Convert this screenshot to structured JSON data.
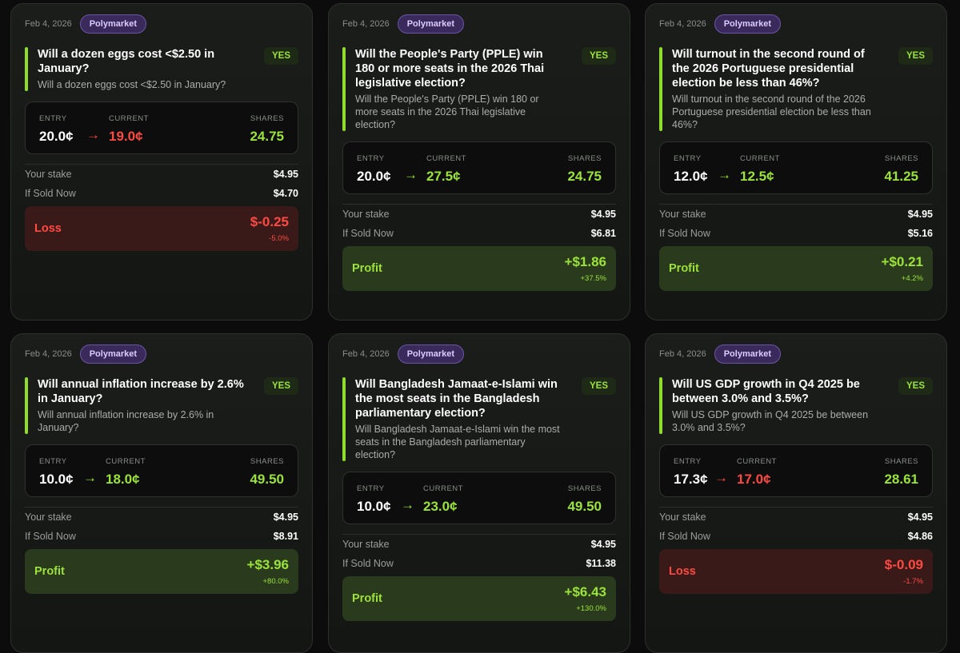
{
  "labels": {
    "entry": "ENTRY",
    "current": "CURRENT",
    "shares": "SHARES",
    "stake": "Your stake",
    "sold": "If Sold Now",
    "arrow": "→"
  },
  "cards": [
    {
      "date": "Feb 4, 2026",
      "platform": "Polymarket",
      "side": "YES",
      "title": "Will a dozen eggs cost <$2.50 in January?",
      "subtitle": "Will a dozen eggs cost <$2.50 in January?",
      "entry": "20.0¢",
      "current": "19.0¢",
      "shares": "24.75",
      "stake": "$4.95",
      "sold_now": "$4.70",
      "result_label": "Loss",
      "result_amount": "$-0.25",
      "result_pct": "-5.0%",
      "outcome": "loss"
    },
    {
      "date": "Feb 4, 2026",
      "platform": "Polymarket",
      "side": "YES",
      "title": "Will the People's Party (PPLE) win 180 or more seats in the 2026 Thai legislative election?",
      "subtitle": "Will the People's Party (PPLE) win 180 or more seats in the 2026 Thai legislative election?",
      "entry": "20.0¢",
      "current": "27.5¢",
      "shares": "24.75",
      "stake": "$4.95",
      "sold_now": "$6.81",
      "result_label": "Profit",
      "result_amount": "+$1.86",
      "result_pct": "+37.5%",
      "outcome": "profit"
    },
    {
      "date": "Feb 4, 2026",
      "platform": "Polymarket",
      "side": "YES",
      "title": "Will turnout in the second round of the 2026 Portuguese presidential election be less than 46%?",
      "subtitle": "Will turnout in the second round of the 2026 Portuguese presidential election be less than 46%?",
      "entry": "12.0¢",
      "current": "12.5¢",
      "shares": "41.25",
      "stake": "$4.95",
      "sold_now": "$5.16",
      "result_label": "Profit",
      "result_amount": "+$0.21",
      "result_pct": "+4.2%",
      "outcome": "profit"
    },
    {
      "date": "Feb 4, 2026",
      "platform": "Polymarket",
      "side": "YES",
      "title": "Will annual inflation increase by 2.6% in January?",
      "subtitle": "Will annual inflation increase by 2.6% in January?",
      "entry": "10.0¢",
      "current": "18.0¢",
      "shares": "49.50",
      "stake": "$4.95",
      "sold_now": "$8.91",
      "result_label": "Profit",
      "result_amount": "+$3.96",
      "result_pct": "+80.0%",
      "outcome": "profit"
    },
    {
      "date": "Feb 4, 2026",
      "platform": "Polymarket",
      "side": "YES",
      "title": "Will Bangladesh Jamaat-e-Islami win the most seats in the Bangladesh parliamentary election?",
      "subtitle": "Will Bangladesh Jamaat-e-Islami win the most seats in the Bangladesh parliamentary election?",
      "entry": "10.0¢",
      "current": "23.0¢",
      "shares": "49.50",
      "stake": "$4.95",
      "sold_now": "$11.38",
      "result_label": "Profit",
      "result_amount": "+$6.43",
      "result_pct": "+130.0%",
      "outcome": "profit"
    },
    {
      "date": "Feb 4, 2026",
      "platform": "Polymarket",
      "side": "YES",
      "title": "Will US GDP growth in Q4 2025 be between 3.0% and 3.5%?",
      "subtitle": "Will US GDP growth in Q4 2025 be between 3.0% and 3.5%?",
      "entry": "17.3¢",
      "current": "17.0¢",
      "shares": "28.61",
      "stake": "$4.95",
      "sold_now": "$4.86",
      "result_label": "Loss",
      "result_amount": "$-0.09",
      "result_pct": "-1.7%",
      "outcome": "loss"
    }
  ]
}
